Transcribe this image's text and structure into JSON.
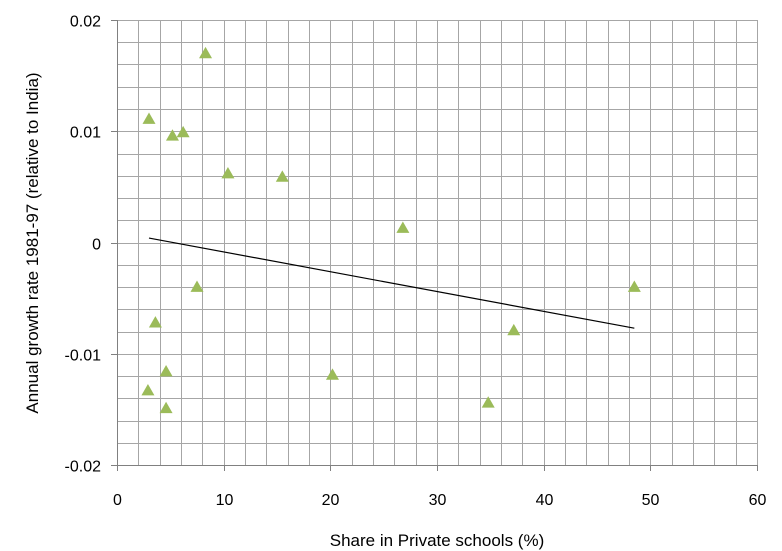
{
  "chart_data": {
    "type": "scatter",
    "title": "",
    "xlabel": "Share in Private schools (%)",
    "ylabel": "Annual growth rate 1981-97 (relative to India)",
    "xlim": [
      0,
      60
    ],
    "ylim": [
      -0.02,
      0.02
    ],
    "xticks": [
      "0",
      "10",
      "20",
      "30",
      "40",
      "50",
      "60"
    ],
    "yticks": [
      "-0.02",
      "-0.01",
      "0",
      "0.01",
      "0.02"
    ],
    "grid": true,
    "marker": "triangle",
    "colors": {
      "marker": "#9bbb59",
      "trendline": "#000000",
      "grid": "#a6a6a6",
      "axis": "#808080"
    },
    "points": [
      {
        "x": 3.0,
        "y": 0.0111
      },
      {
        "x": 8.3,
        "y": 0.017
      },
      {
        "x": 5.2,
        "y": 0.0096
      },
      {
        "x": 6.2,
        "y": 0.0099
      },
      {
        "x": 10.4,
        "y": 0.0062
      },
      {
        "x": 15.5,
        "y": 0.0059
      },
      {
        "x": 26.8,
        "y": 0.0013
      },
      {
        "x": 48.5,
        "y": -0.004
      },
      {
        "x": 7.5,
        "y": -0.004
      },
      {
        "x": 3.6,
        "y": -0.0072
      },
      {
        "x": 37.2,
        "y": -0.0079
      },
      {
        "x": 4.6,
        "y": -0.0116
      },
      {
        "x": 20.2,
        "y": -0.0119
      },
      {
        "x": 2.9,
        "y": -0.0133
      },
      {
        "x": 4.6,
        "y": -0.0149
      },
      {
        "x": 34.8,
        "y": -0.0144
      }
    ],
    "trendline": {
      "type": "linear",
      "x": [
        3.0,
        48.5
      ],
      "y": [
        0.0004,
        -0.0077
      ]
    }
  }
}
